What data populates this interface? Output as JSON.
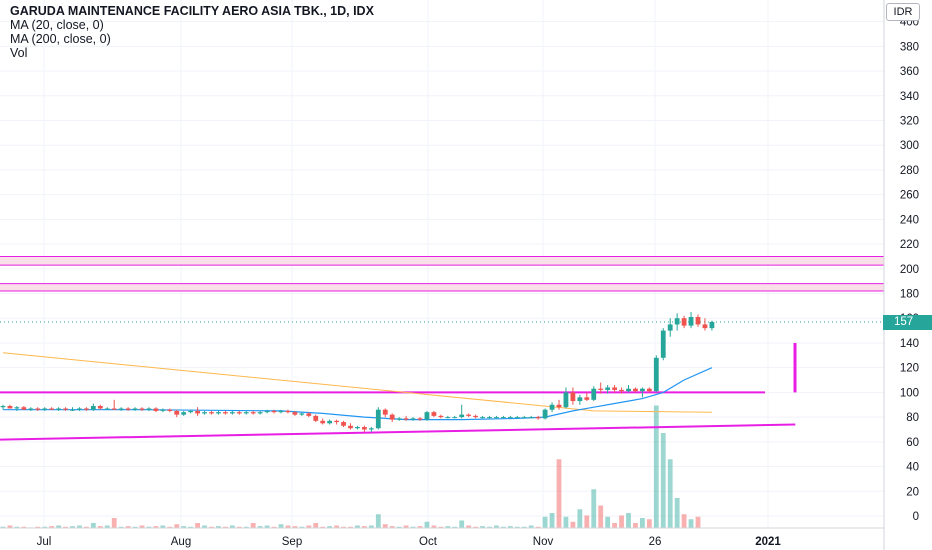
{
  "header": {
    "title": "GARUDA MAINTENANCE FACILITY AERO ASIA TBK., 1D, IDX",
    "ma20_label": "MA (20, close, 0)",
    "ma200_label": "MA (200, close, 0)",
    "vol_label": "Vol",
    "currency": "IDR",
    "last_price": "157"
  },
  "colors": {
    "up": "#26a69a",
    "down": "#ef5350",
    "ma20": "#2196f3",
    "ma200": "#ffb74d",
    "trendline": "#e91ee4",
    "zone_fill": "#f8dfe8",
    "grid": "#f0f3fa"
  },
  "chart_data": {
    "type": "candlestick",
    "price_axis": {
      "ticks": [
        "400",
        "380",
        "360",
        "340",
        "320",
        "300",
        "280",
        "260",
        "240",
        "220",
        "200",
        "180",
        "160",
        "140",
        "120",
        "100",
        "80",
        "60",
        "40",
        "20",
        "0"
      ],
      "range": [
        0,
        400
      ]
    },
    "time_axis": {
      "labels": [
        "Jul",
        "Aug",
        "Sep",
        "Oct",
        "Nov",
        "26",
        "2021"
      ]
    },
    "resistance_zones": [
      [
        203,
        210
      ],
      [
        182,
        188
      ]
    ],
    "support_line": 100,
    "candles": [
      {
        "o": 88,
        "h": 90,
        "l": 86,
        "c": 89
      },
      {
        "o": 89,
        "h": 90,
        "l": 87,
        "c": 87
      },
      {
        "o": 87,
        "h": 89,
        "l": 85,
        "c": 88
      },
      {
        "o": 88,
        "h": 89,
        "l": 86,
        "c": 86
      },
      {
        "o": 86,
        "h": 88,
        "l": 85,
        "c": 87
      },
      {
        "o": 87,
        "h": 88,
        "l": 85,
        "c": 86
      },
      {
        "o": 86,
        "h": 88,
        "l": 85,
        "c": 87
      },
      {
        "o": 87,
        "h": 88,
        "l": 86,
        "c": 86
      },
      {
        "o": 86,
        "h": 88,
        "l": 85,
        "c": 87
      },
      {
        "o": 87,
        "h": 88,
        "l": 85,
        "c": 86
      },
      {
        "o": 86,
        "h": 88,
        "l": 85,
        "c": 86
      },
      {
        "o": 86,
        "h": 88,
        "l": 85,
        "c": 87
      },
      {
        "o": 87,
        "h": 88,
        "l": 85,
        "c": 86
      },
      {
        "o": 86,
        "h": 91,
        "l": 85,
        "c": 89
      },
      {
        "o": 89,
        "h": 90,
        "l": 86,
        "c": 87
      },
      {
        "o": 87,
        "h": 88,
        "l": 86,
        "c": 87
      },
      {
        "o": 87,
        "h": 94,
        "l": 86,
        "c": 86
      },
      {
        "o": 86,
        "h": 88,
        "l": 85,
        "c": 87
      },
      {
        "o": 87,
        "h": 88,
        "l": 85,
        "c": 86
      },
      {
        "o": 86,
        "h": 88,
        "l": 85,
        "c": 87
      },
      {
        "o": 87,
        "h": 88,
        "l": 85,
        "c": 86
      },
      {
        "o": 86,
        "h": 88,
        "l": 85,
        "c": 87
      },
      {
        "o": 87,
        "h": 88,
        "l": 84,
        "c": 85
      },
      {
        "o": 85,
        "h": 87,
        "l": 84,
        "c": 86
      },
      {
        "o": 86,
        "h": 87,
        "l": 84,
        "c": 85
      },
      {
        "o": 85,
        "h": 86,
        "l": 80,
        "c": 82
      },
      {
        "o": 82,
        "h": 85,
        "l": 81,
        "c": 84
      },
      {
        "o": 84,
        "h": 86,
        "l": 83,
        "c": 85
      },
      {
        "o": 85,
        "h": 88,
        "l": 81,
        "c": 83
      },
      {
        "o": 83,
        "h": 85,
        "l": 82,
        "c": 84
      },
      {
        "o": 84,
        "h": 85,
        "l": 82,
        "c": 83
      },
      {
        "o": 83,
        "h": 85,
        "l": 82,
        "c": 84
      },
      {
        "o": 84,
        "h": 85,
        "l": 82,
        "c": 83
      },
      {
        "o": 83,
        "h": 85,
        "l": 82,
        "c": 84
      },
      {
        "o": 84,
        "h": 85,
        "l": 82,
        "c": 83
      },
      {
        "o": 83,
        "h": 85,
        "l": 82,
        "c": 84
      },
      {
        "o": 84,
        "h": 85,
        "l": 82,
        "c": 83
      },
      {
        "o": 83,
        "h": 85,
        "l": 82,
        "c": 84
      },
      {
        "o": 84,
        "h": 86,
        "l": 83,
        "c": 85
      },
      {
        "o": 85,
        "h": 86,
        "l": 83,
        "c": 84
      },
      {
        "o": 84,
        "h": 86,
        "l": 83,
        "c": 85
      },
      {
        "o": 85,
        "h": 86,
        "l": 83,
        "c": 84
      },
      {
        "o": 84,
        "h": 85,
        "l": 81,
        "c": 82
      },
      {
        "o": 82,
        "h": 84,
        "l": 81,
        "c": 83
      },
      {
        "o": 83,
        "h": 84,
        "l": 80,
        "c": 81
      },
      {
        "o": 81,
        "h": 82,
        "l": 76,
        "c": 77
      },
      {
        "o": 77,
        "h": 79,
        "l": 74,
        "c": 75
      },
      {
        "o": 75,
        "h": 78,
        "l": 74,
        "c": 77
      },
      {
        "o": 77,
        "h": 78,
        "l": 74,
        "c": 76
      },
      {
        "o": 76,
        "h": 77,
        "l": 72,
        "c": 73
      },
      {
        "o": 73,
        "h": 75,
        "l": 70,
        "c": 71
      },
      {
        "o": 71,
        "h": 73,
        "l": 70,
        "c": 72
      },
      {
        "o": 72,
        "h": 73,
        "l": 68,
        "c": 70
      },
      {
        "o": 70,
        "h": 72,
        "l": 68,
        "c": 71
      },
      {
        "o": 71,
        "h": 88,
        "l": 70,
        "c": 86
      },
      {
        "o": 86,
        "h": 87,
        "l": 80,
        "c": 82
      },
      {
        "o": 82,
        "h": 83,
        "l": 76,
        "c": 78
      },
      {
        "o": 78,
        "h": 80,
        "l": 77,
        "c": 79
      },
      {
        "o": 79,
        "h": 81,
        "l": 77,
        "c": 78
      },
      {
        "o": 78,
        "h": 80,
        "l": 77,
        "c": 79
      },
      {
        "o": 79,
        "h": 80,
        "l": 77,
        "c": 78
      },
      {
        "o": 78,
        "h": 85,
        "l": 77,
        "c": 84
      },
      {
        "o": 84,
        "h": 85,
        "l": 80,
        "c": 81
      },
      {
        "o": 81,
        "h": 82,
        "l": 79,
        "c": 80
      },
      {
        "o": 80,
        "h": 81,
        "l": 79,
        "c": 80
      },
      {
        "o": 80,
        "h": 81,
        "l": 79,
        "c": 80
      },
      {
        "o": 80,
        "h": 90,
        "l": 79,
        "c": 82
      },
      {
        "o": 82,
        "h": 83,
        "l": 80,
        "c": 81
      },
      {
        "o": 81,
        "h": 82,
        "l": 79,
        "c": 80
      },
      {
        "o": 80,
        "h": 81,
        "l": 79,
        "c": 80
      },
      {
        "o": 80,
        "h": 81,
        "l": 79,
        "c": 80
      },
      {
        "o": 80,
        "h": 81,
        "l": 79,
        "c": 80
      },
      {
        "o": 80,
        "h": 81,
        "l": 79,
        "c": 80
      },
      {
        "o": 80,
        "h": 81,
        "l": 79,
        "c": 80
      },
      {
        "o": 80,
        "h": 81,
        "l": 79,
        "c": 80
      },
      {
        "o": 80,
        "h": 81,
        "l": 79,
        "c": 80
      },
      {
        "o": 80,
        "h": 81,
        "l": 79,
        "c": 80
      },
      {
        "o": 80,
        "h": 81,
        "l": 78,
        "c": 79
      },
      {
        "o": 79,
        "h": 87,
        "l": 78,
        "c": 86
      },
      {
        "o": 86,
        "h": 92,
        "l": 84,
        "c": 90
      },
      {
        "o": 90,
        "h": 94,
        "l": 86,
        "c": 88
      },
      {
        "o": 88,
        "h": 104,
        "l": 87,
        "c": 100
      },
      {
        "o": 100,
        "h": 104,
        "l": 90,
        "c": 93
      },
      {
        "o": 93,
        "h": 98,
        "l": 90,
        "c": 96
      },
      {
        "o": 96,
        "h": 100,
        "l": 93,
        "c": 94
      },
      {
        "o": 94,
        "h": 105,
        "l": 93,
        "c": 103
      },
      {
        "o": 103,
        "h": 108,
        "l": 99,
        "c": 102
      },
      {
        "o": 102,
        "h": 106,
        "l": 99,
        "c": 104
      },
      {
        "o": 104,
        "h": 106,
        "l": 100,
        "c": 102
      },
      {
        "o": 102,
        "h": 104,
        "l": 99,
        "c": 101
      },
      {
        "o": 101,
        "h": 106,
        "l": 100,
        "c": 103
      },
      {
        "o": 103,
        "h": 104,
        "l": 100,
        "c": 101
      },
      {
        "o": 101,
        "h": 104,
        "l": 96,
        "c": 103
      },
      {
        "o": 103,
        "h": 104,
        "l": 100,
        "c": 101
      },
      {
        "o": 101,
        "h": 130,
        "l": 100,
        "c": 128
      },
      {
        "o": 128,
        "h": 152,
        "l": 126,
        "c": 150
      },
      {
        "o": 150,
        "h": 160,
        "l": 145,
        "c": 155
      },
      {
        "o": 155,
        "h": 164,
        "l": 150,
        "c": 160
      },
      {
        "o": 160,
        "h": 162,
        "l": 152,
        "c": 154
      },
      {
        "o": 154,
        "h": 165,
        "l": 152,
        "c": 161
      },
      {
        "o": 161,
        "h": 163,
        "l": 153,
        "c": 155
      },
      {
        "o": 155,
        "h": 160,
        "l": 150,
        "c": 152
      },
      {
        "o": 152,
        "h": 158,
        "l": 150,
        "c": 157
      }
    ],
    "volumes": [
      1,
      2,
      1,
      1,
      0.5,
      1,
      1,
      1.5,
      2,
      1,
      1.5,
      2,
      1,
      4,
      1.5,
      2,
      8,
      1,
      1.5,
      1,
      2,
      1,
      1.5,
      2,
      1,
      3,
      1.5,
      1,
      4,
      2,
      1,
      1.5,
      1,
      2,
      1,
      1,
      4,
      1.5,
      2,
      1,
      3,
      2,
      1.5,
      1,
      2,
      4,
      1,
      1.5,
      2,
      1,
      1,
      2,
      1.5,
      2,
      11,
      3,
      1.5,
      1,
      2,
      1,
      1.5,
      5,
      2,
      1,
      1.5,
      1,
      6,
      2,
      1,
      1.5,
      1,
      2,
      1,
      1.5,
      1,
      1,
      2,
      1,
      9,
      12,
      55,
      9,
      5,
      15,
      10,
      31,
      18,
      9,
      4,
      10,
      12,
      4,
      8,
      7,
      98,
      76,
      55,
      24,
      11,
      7,
      9
    ],
    "ma20": [
      [
        0,
        86
      ],
      [
        20,
        86
      ],
      [
        40,
        85
      ],
      [
        46,
        83
      ],
      [
        52,
        80
      ],
      [
        58,
        78
      ],
      [
        66,
        78
      ],
      [
        74,
        79
      ],
      [
        78,
        80
      ],
      [
        82,
        85
      ],
      [
        85,
        88
      ],
      [
        88,
        91
      ],
      [
        92,
        95
      ],
      [
        95,
        100
      ],
      [
        98,
        110
      ],
      [
        102,
        120
      ]
    ],
    "ma200": [
      [
        0,
        132
      ],
      [
        85,
        85
      ],
      [
        102,
        84
      ]
    ],
    "support_trendline": [
      [
        -8,
        61
      ],
      [
        114,
        74
      ]
    ],
    "marker": [
      140,
      100
    ]
  }
}
